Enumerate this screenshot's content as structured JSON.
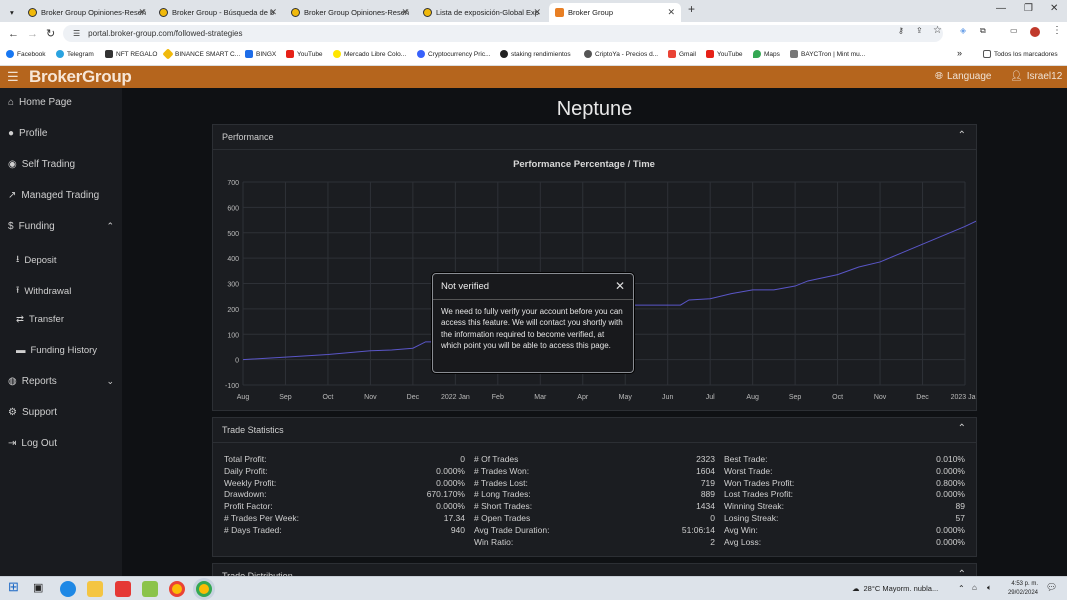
{
  "browser": {
    "tabs": [
      {
        "label": "Broker Group Opiniones-Reseñ",
        "active": false
      },
      {
        "label": "Broker Group - Búsqueda de b",
        "active": false
      },
      {
        "label": "Broker Group Opiniones-Reseñ",
        "active": false
      },
      {
        "label": "Lista de exposición-Global Exp",
        "active": false
      },
      {
        "label": "Broker Group",
        "active": true
      }
    ],
    "url": "portal.broker-group.com/followed-strategies",
    "bookmarks": [
      "Facebook",
      "Telegram",
      "NFT REGALO",
      "BINANCE SMART C...",
      "BINGX",
      "YouTube",
      "Mercado Libre Colo...",
      "Cryptocurrency Pric...",
      "staking rendimientos",
      "CriptoYa - Precios d...",
      "Gmail",
      "YouTube",
      "Maps",
      "BAYCTron | Mint mu..."
    ],
    "bookmarks_more": "»",
    "all_bookmarks": "Todos los marcadores"
  },
  "header": {
    "logo": "BrokerGroup",
    "language": "Language",
    "user": "Israel12"
  },
  "sidebar": {
    "items": [
      {
        "label": "Home Page",
        "icon": "home-icon"
      },
      {
        "label": "Profile",
        "icon": "user-icon"
      },
      {
        "label": "Self Trading",
        "icon": "coins-icon"
      },
      {
        "label": "Managed Trading",
        "icon": "chart-line-icon"
      },
      {
        "label": "Funding",
        "icon": "money-icon"
      },
      {
        "label": "Deposit",
        "icon": "download-icon"
      },
      {
        "label": "Withdrawal",
        "icon": "upload-icon"
      },
      {
        "label": "Transfer",
        "icon": "transfer-icon"
      },
      {
        "label": "Funding History",
        "icon": "folder-icon"
      },
      {
        "label": "Reports",
        "icon": "reports-icon"
      },
      {
        "label": "Support",
        "icon": "support-icon"
      },
      {
        "label": "Log Out",
        "icon": "logout-icon"
      }
    ]
  },
  "page": {
    "title": "Neptune"
  },
  "performance": {
    "heading": "Performance",
    "chart_title": "Performance Percentage / Time"
  },
  "chart_data": {
    "type": "line",
    "title": "Performance Percentage / Time",
    "xlabel": "",
    "ylabel": "",
    "ylim": [
      -100,
      700
    ],
    "yticks": [
      700,
      600,
      500,
      400,
      300,
      200,
      100,
      0,
      -100
    ],
    "xticks": [
      "Aug",
      "Sep",
      "Oct",
      "Nov",
      "Dec",
      "2022 Jan",
      "Feb",
      "Mar",
      "Apr",
      "May",
      "Jun",
      "Jul",
      "Aug",
      "Sep",
      "Oct",
      "Nov",
      "Dec",
      "2023 Jan"
    ],
    "grid": true,
    "series": [
      {
        "color": "#5a56c8",
        "x": [
          0,
          1,
          2,
          3,
          3.5,
          4,
          4.3,
          5,
          5.5,
          6.5,
          8.7,
          9,
          9.5,
          10,
          10.3,
          10.5,
          11,
          11.5,
          12,
          12.5,
          13,
          13.3,
          14,
          14.5,
          15,
          15.5,
          16,
          16.5,
          17,
          17.5
        ],
        "values": [
          0,
          10,
          20,
          35,
          38,
          45,
          70,
          70,
          85,
          120,
          210,
          215,
          215,
          215,
          215,
          235,
          240,
          260,
          275,
          275,
          290,
          310,
          335,
          365,
          385,
          420,
          455,
          490,
          525,
          565
        ]
      }
    ]
  },
  "trade_statistics": {
    "heading": "Trade Statistics",
    "col1": [
      {
        "label": "Total Profit:",
        "value": "0"
      },
      {
        "label": "Daily Profit:",
        "value": "0.000%"
      },
      {
        "label": "Weekly Profit:",
        "value": "0.000%"
      },
      {
        "label": "Drawdown:",
        "value": "670.170%"
      },
      {
        "label": "Profit Factor:",
        "value": "0.000%"
      },
      {
        "label": "# Trades Per Week:",
        "value": "17.34"
      },
      {
        "label": "# Days Traded:",
        "value": "940"
      }
    ],
    "col2": [
      {
        "label": "# Of Trades",
        "value": "2323"
      },
      {
        "label": "# Trades Won:",
        "value": "1604"
      },
      {
        "label": "# Trades Lost:",
        "value": "719"
      },
      {
        "label": "# Long Trades:",
        "value": "889"
      },
      {
        "label": "# Short Trades:",
        "value": "1434"
      },
      {
        "label": "# Open Trades",
        "value": "0"
      },
      {
        "label": "Avg Trade Duration:",
        "value": "51:06:14"
      },
      {
        "label": "Win Ratio:",
        "value": "2"
      }
    ],
    "col3": [
      {
        "label": "Best Trade:",
        "value": "0.010%"
      },
      {
        "label": "Worst Trade:",
        "value": "0.000%"
      },
      {
        "label": "Won Trades Profit:",
        "value": "0.800%"
      },
      {
        "label": "Lost Trades Profit:",
        "value": "0.000%"
      },
      {
        "label": "Winning Streak:",
        "value": "89"
      },
      {
        "label": "Losing Streak:",
        "value": "57"
      },
      {
        "label": "Avg Win:",
        "value": "0.000%"
      },
      {
        "label": "Avg Loss:",
        "value": "0.000%"
      }
    ]
  },
  "trade_distribution": {
    "heading": "Trade Distribution"
  },
  "modal": {
    "title": "Not verified",
    "body": "We need to fully verify your account before you can access this feature. We will contact you shortly with the information required to become verified, at which point you will be able to access this page."
  },
  "taskbar": {
    "weather": "28°C  Mayorm. nubla...",
    "time": "4:53 p. m.",
    "date": "29/02/2024"
  }
}
